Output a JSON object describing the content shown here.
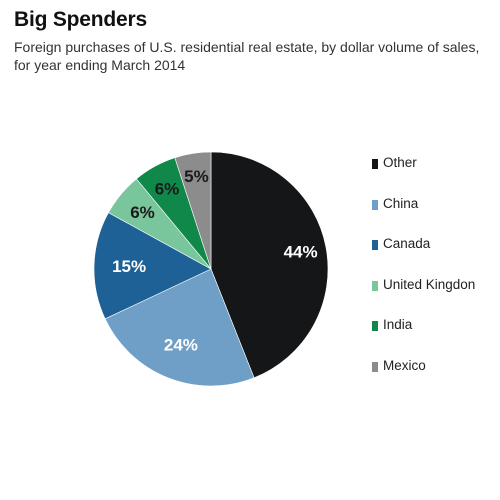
{
  "header": {
    "title": "Big Spenders",
    "subtitle": "Foreign purchases of U.S. residential real estate, by dollar volume of sales, for year ending March 2014"
  },
  "chart_data": {
    "type": "pie",
    "title": "Big Spenders",
    "subtitle": "Foreign purchases of U.S. residential real estate, by dollar volume of sales, for year ending March 2014",
    "unit": "%",
    "start": "12 o'clock",
    "direction": "clockwise",
    "legend_position": "right",
    "slices": [
      {
        "label": "Other",
        "value": 44,
        "display": "44%",
        "color": "#141617",
        "label_color": "#ffffff"
      },
      {
        "label": "China",
        "value": 24,
        "display": "24%",
        "color": "#6f9fc7",
        "label_color": "#ffffff"
      },
      {
        "label": "Canada",
        "value": 15,
        "display": "15%",
        "color": "#1d6196",
        "label_color": "#ffffff"
      },
      {
        "label": "United Kingdon",
        "value": 6,
        "display": "6%",
        "color": "#79c69c",
        "label_color": "#1a1a1a"
      },
      {
        "label": "India",
        "value": 6,
        "display": "6%",
        "color": "#10884a",
        "label_color": "#1a1a1a"
      },
      {
        "label": "Mexico",
        "value": 5,
        "display": "5%",
        "color": "#8c8c8c",
        "label_color": "#1a1a1a"
      }
    ]
  }
}
